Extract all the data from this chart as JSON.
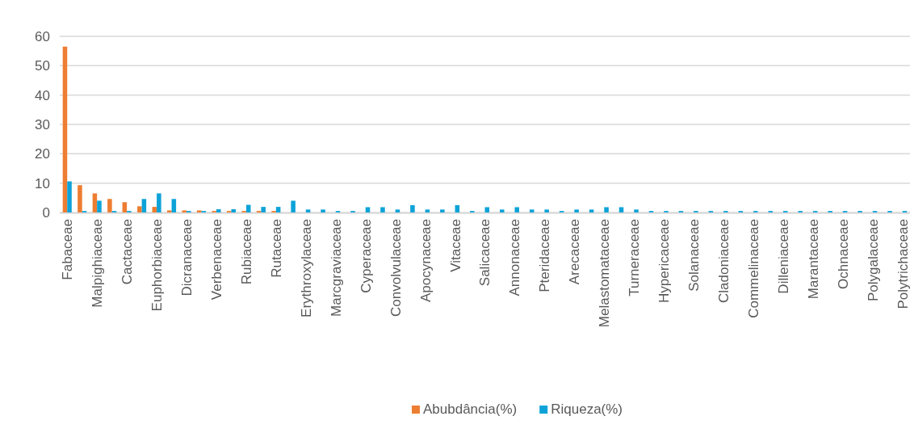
{
  "chart_data": {
    "type": "bar",
    "categories": [
      "Fabaceae",
      null,
      "Malpighiaceae",
      null,
      "Cactaceae",
      null,
      "Euphorbiaceae",
      null,
      "Dicranaceae",
      null,
      "Verbenaceae",
      null,
      "Rubiaceae",
      null,
      "Rutaceae",
      null,
      "Erythroxylaceae",
      null,
      "Marcgraviaceae",
      null,
      "Cyperaceae",
      null,
      "Convolvulaceae",
      null,
      "Apocynaceae",
      null,
      "Vitaceae",
      null,
      "Salicaceae",
      null,
      "Annonaceae",
      null,
      "Pteridaceae",
      null,
      "Arecaceae",
      null,
      "Melastomataceae",
      null,
      "Turneraceae",
      null,
      "Hypericaceae",
      null,
      "Solanaceae",
      null,
      "Cladoniaceae",
      null,
      "Commelinaceae",
      null,
      "Dilleniaceae",
      null,
      "Marantaceae",
      null,
      "Ochnaceae",
      null,
      "Polygalaceae",
      null,
      "Polytrichaceae"
    ],
    "series": [
      {
        "name": "Abubdância(%)",
        "color": "#ed7d31",
        "values": [
          56.5,
          9.3,
          6.5,
          4.6,
          3.5,
          2.1,
          1.9,
          0.7,
          0.7,
          0.7,
          0.5,
          0.5,
          0.5,
          0.5,
          0.5,
          null,
          null,
          null,
          null,
          null,
          null,
          null,
          null,
          null,
          null,
          null,
          null,
          null,
          null,
          null,
          null,
          null,
          null,
          null,
          null,
          null,
          null,
          null,
          null,
          null,
          null,
          null,
          null,
          null,
          null,
          null,
          null,
          null,
          null,
          null,
          null,
          null,
          null,
          null,
          null,
          null,
          null
        ]
      },
      {
        "name": "Riqueza(%)",
        "color": "#0ea3d8",
        "values": [
          10.6,
          0.5,
          4.0,
          0.5,
          0.5,
          4.6,
          6.5,
          4.6,
          0.5,
          0.5,
          1.1,
          1.1,
          2.6,
          1.9,
          1.9,
          4.0,
          1.0,
          1.0,
          0.5,
          0.5,
          1.8,
          1.8,
          1.0,
          2.5,
          1.0,
          1.0,
          2.5,
          0.5,
          1.8,
          1.0,
          1.8,
          1.0,
          1.0,
          0.5,
          1.0,
          1.0,
          1.8,
          1.8,
          1.0,
          0.5,
          0.5,
          0.5,
          0.5,
          0.5,
          0.5,
          0.5,
          0.5,
          0.5,
          0.5,
          0.5,
          0.5,
          0.5,
          0.5,
          0.5,
          0.5,
          0.5,
          0.5
        ]
      }
    ],
    "ylim": [
      0,
      60
    ],
    "yticks": [
      0,
      10,
      20,
      30,
      40,
      50,
      60
    ],
    "grid": "y",
    "legend": "bottom"
  }
}
